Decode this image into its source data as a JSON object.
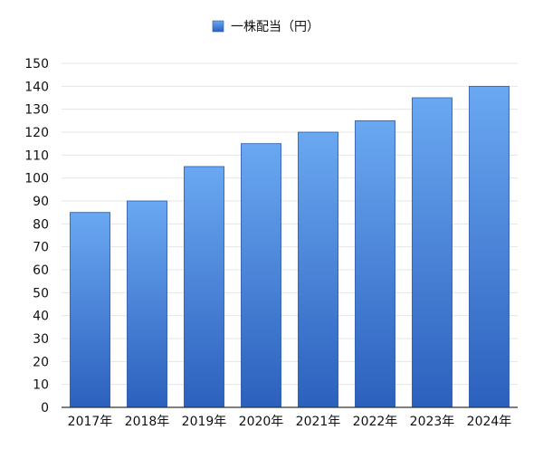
{
  "chart_data": {
    "type": "bar",
    "categories": [
      "2017年",
      "2018年",
      "2019年",
      "2020年",
      "2021年",
      "2022年",
      "2023年",
      "2024年"
    ],
    "series": [
      {
        "name": "一株配当（円）",
        "values": [
          85,
          90,
          105,
          115,
          120,
          125,
          135,
          140
        ]
      }
    ],
    "ylim": [
      0,
      150
    ],
    "yticks": [
      0,
      10,
      20,
      30,
      40,
      50,
      60,
      70,
      80,
      90,
      100,
      110,
      120,
      130,
      140,
      150
    ],
    "grid": true,
    "legend_position": "top-center",
    "colors": {
      "bar_top": "#6aa8f2",
      "bar_bottom": "#2c60bd",
      "legend_swatch": "#3b78d8"
    }
  }
}
